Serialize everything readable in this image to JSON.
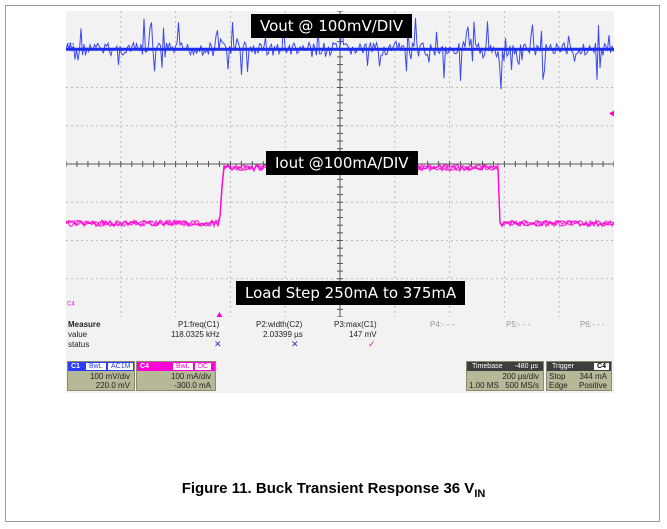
{
  "chart_data": {
    "type": "line",
    "title": "Figure 11. Buck Transient Response 36 V",
    "title_subscript": "IN",
    "grid": true,
    "grid_divisions": {
      "x": 10,
      "y": 8
    },
    "annotations": [
      "Vout @ 100mV/DIV",
      "Iout @100mA/DIV",
      "Load Step 250mA to 375mA"
    ],
    "series": [
      {
        "name": "C1",
        "color": "#1c2cf0",
        "level_div": 1.0,
        "ripple_div": 0.35,
        "transients_at_div": [
          2.7,
          7.9
        ]
      },
      {
        "name": "C4",
        "color": "#ff00d4",
        "low_div": 2.45,
        "high_div": 3.9,
        "rise_at_div": 2.8,
        "fall_at_div": 7.9
      }
    ]
  },
  "measure": {
    "header": "Measure",
    "row_labels": [
      "value",
      "status"
    ],
    "params": [
      {
        "name": "P1:freq(C1)",
        "value": "118.0325 kHz",
        "status": "✕"
      },
      {
        "name": "P2:width(C2)",
        "value": "2.03399 µs",
        "status": "✕"
      },
      {
        "name": "P3:max(C1)",
        "value": "147 mV",
        "status": "✓"
      },
      {
        "name": "P4:- - -",
        "value": "",
        "status": ""
      },
      {
        "name": "P5:- - -",
        "value": "",
        "status": ""
      },
      {
        "name": "P6:- - -",
        "value": "",
        "status": ""
      }
    ]
  },
  "channels": [
    {
      "id": "C1",
      "tags": [
        "BwL",
        "AC1M"
      ],
      "scale": "100 mV/div",
      "offset": "220.0 mV",
      "color": "#2b3cff"
    },
    {
      "id": "C4",
      "tags": [
        "BwL",
        "DC"
      ],
      "scale": "100 mA/div",
      "offset": "-300.0 mA",
      "color": "#ff00d4"
    }
  ],
  "timebase": {
    "label": "Timebase",
    "delay": "-480 µs",
    "per_div": "200 µs/div",
    "samples": "1.00 MS",
    "rate": "500 MS/s"
  },
  "trigger": {
    "label": "Trigger",
    "channel": "C4",
    "mode": "Stop",
    "level": "344 mA",
    "type": "Edge",
    "slope": "Positive"
  },
  "markers": {
    "c1": "C1",
    "c4": "C4"
  },
  "colors": {
    "c1": "#1c2cf0",
    "c4": "#ff00d4",
    "grid": "#bdbdbd",
    "panel": "#b7b897"
  }
}
